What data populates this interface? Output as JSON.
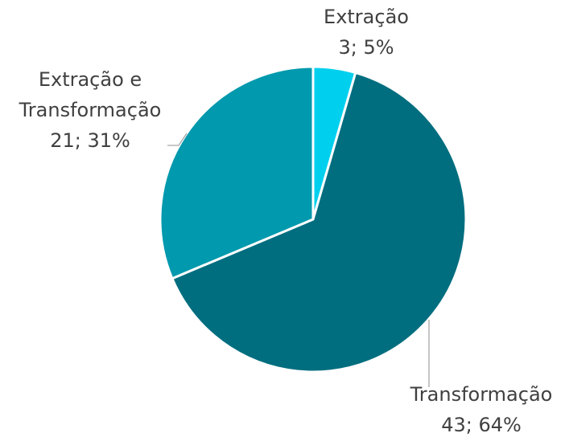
{
  "chart_data": {
    "type": "pie",
    "categories": [
      "Extração",
      "Transformação",
      "Extração e Transformação"
    ],
    "values": [
      3,
      43,
      21
    ],
    "value_labels": [
      "3; 5%",
      "43; 64%",
      "21; 31%"
    ],
    "colors": [
      "#00d0ee",
      "#006e7f",
      "#0099ad"
    ]
  }
}
